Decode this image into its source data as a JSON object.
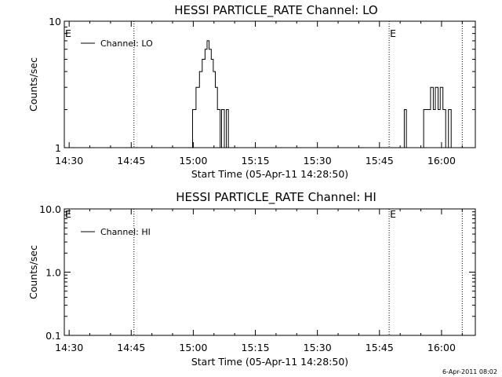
{
  "footer": {
    "stamp": "6-Apr-2011 08:02"
  },
  "chart_data": [
    {
      "type": "line",
      "title": "HESSI PARTICLE_RATE Channel: LO",
      "xlabel": "Start Time (05-Apr-11 14:28:50)",
      "ylabel": "Counts/sec",
      "yscale": "log",
      "ylim": [
        1,
        10
      ],
      "xlim": [
        "14:28:50",
        "16:08:10"
      ],
      "xticks": [
        "14:30",
        "14:45",
        "15:00",
        "15:15",
        "15:30",
        "15:45",
        "16:00"
      ],
      "yticks": [
        "1",
        "10"
      ],
      "legend": {
        "entries": [
          "Channel: LO"
        ],
        "position": "top-left"
      },
      "event_markers": [
        {
          "time": "14:45:40",
          "label": ""
        },
        {
          "time": "15:47:20",
          "label": ""
        },
        {
          "time": "16:05:00",
          "label": ""
        }
      ],
      "edge_labels": [
        {
          "time": "14:28:50",
          "label": "E"
        },
        {
          "time": "15:47:20",
          "label": "E"
        }
      ],
      "series": [
        {
          "name": "Channel: LO",
          "points": [
            [
              "14:59:50",
              1
            ],
            [
              "14:59:50",
              2
            ],
            [
              "15:00:40",
              2
            ],
            [
              "15:00:40",
              3
            ],
            [
              "15:01:30",
              3
            ],
            [
              "15:01:30",
              4
            ],
            [
              "15:02:10",
              4
            ],
            [
              "15:02:10",
              5
            ],
            [
              "15:02:50",
              5
            ],
            [
              "15:02:50",
              6
            ],
            [
              "15:03:20",
              6
            ],
            [
              "15:03:20",
              7
            ],
            [
              "15:03:50",
              7
            ],
            [
              "15:03:50",
              6
            ],
            [
              "15:04:20",
              6
            ],
            [
              "15:04:20",
              5
            ],
            [
              "15:04:50",
              5
            ],
            [
              "15:04:50",
              4
            ],
            [
              "15:05:20",
              4
            ],
            [
              "15:05:20",
              3
            ],
            [
              "15:05:50",
              3
            ],
            [
              "15:05:50",
              2
            ],
            [
              "15:06:30",
              2
            ],
            [
              "15:06:30",
              1
            ],
            [
              "15:06:50",
              1
            ],
            [
              "15:06:50",
              2
            ],
            [
              "15:07:30",
              2
            ],
            [
              "15:07:30",
              1
            ],
            [
              "15:08:00",
              1
            ],
            [
              "15:08:00",
              2
            ],
            [
              "15:08:30",
              2
            ],
            [
              "15:08:30",
              1
            ],
            [
              "15:51:00",
              1
            ],
            [
              "15:51:00",
              2
            ],
            [
              "15:51:30",
              2
            ],
            [
              "15:51:30",
              1
            ],
            [
              "15:55:40",
              1
            ],
            [
              "15:55:40",
              2
            ],
            [
              "15:57:20",
              2
            ],
            [
              "15:57:20",
              3
            ],
            [
              "15:58:00",
              3
            ],
            [
              "15:58:00",
              2
            ],
            [
              "15:58:30",
              2
            ],
            [
              "15:58:30",
              3
            ],
            [
              "15:59:10",
              3
            ],
            [
              "15:59:10",
              2
            ],
            [
              "15:59:40",
              2
            ],
            [
              "15:59:40",
              3
            ],
            [
              "16:00:20",
              3
            ],
            [
              "16:00:20",
              2
            ],
            [
              "16:01:00",
              2
            ],
            [
              "16:01:00",
              1
            ],
            [
              "16:01:40",
              1
            ],
            [
              "16:01:40",
              2
            ],
            [
              "16:02:20",
              2
            ],
            [
              "16:02:20",
              1
            ]
          ]
        }
      ]
    },
    {
      "type": "line",
      "title": "HESSI PARTICLE_RATE Channel: HI",
      "xlabel": "Start Time (05-Apr-11 14:28:50)",
      "ylabel": "Counts/sec",
      "yscale": "log",
      "ylim": [
        0.1,
        10
      ],
      "xlim": [
        "14:28:50",
        "16:08:10"
      ],
      "xticks": [
        "14:30",
        "14:45",
        "15:00",
        "15:15",
        "15:30",
        "15:45",
        "16:00"
      ],
      "yticks": [
        "0.1",
        "1.0",
        "10.0"
      ],
      "legend": {
        "entries": [
          "Channel: HI"
        ],
        "position": "top-left"
      },
      "event_markers": [
        {
          "time": "14:45:40",
          "label": ""
        },
        {
          "time": "15:47:20",
          "label": ""
        },
        {
          "time": "16:05:00",
          "label": ""
        }
      ],
      "edge_labels": [
        {
          "time": "14:28:50",
          "label": "E"
        },
        {
          "time": "15:47:20",
          "label": "E"
        }
      ],
      "series": [
        {
          "name": "Channel: HI",
          "points": []
        }
      ]
    }
  ]
}
